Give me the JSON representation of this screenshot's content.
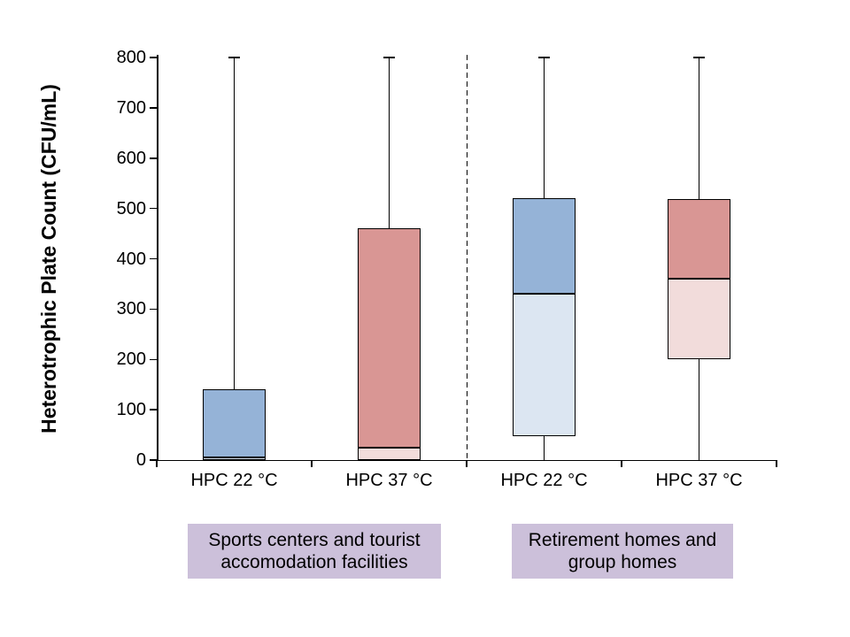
{
  "colors": {
    "box_blue": "#95B3D7",
    "box_blue_light": "#DCE6F2",
    "box_red": "#D99694",
    "box_red_light": "#F2DCDB",
    "group_label_bg": "#CCC0DA",
    "axis": "#000000"
  },
  "chart_data": {
    "type": "box",
    "title": "",
    "ylabel": "Heterotrophic Plate Count (CFU/mL)",
    "xlabel": "",
    "ylim": [
      0,
      800
    ],
    "yticks": [
      0,
      100,
      200,
      300,
      400,
      500,
      600,
      700,
      800
    ],
    "grid": false,
    "legend": "none",
    "separator_note": "dashed vertical line between the two facility groups",
    "group_labels": [
      {
        "line1": "Sports centers and tourist",
        "line2": "accomodation facilities"
      },
      {
        "line1": "Retirement homes and",
        "line2": "group homes"
      }
    ],
    "boxes": [
      {
        "label": "HPC 22 °C",
        "group": "Sports centers and tourist accomodation facilities",
        "min": 0,
        "q1": 0,
        "median": 5,
        "q3": 140,
        "max": 800,
        "color_upper": "#95B3D7",
        "color_lower": "#DCE6F2"
      },
      {
        "label": "HPC 37 °C",
        "group": "Sports centers and tourist accomodation facilities",
        "min": 0,
        "q1": 0,
        "median": 25,
        "q3": 460,
        "max": 800,
        "color_upper": "#D99694",
        "color_lower": "#F2DCDB"
      },
      {
        "label": "HPC 22 °C",
        "group": "Retirement homes and group homes",
        "min": 0,
        "q1": 47,
        "median": 330,
        "q3": 520,
        "max": 800,
        "color_upper": "#95B3D7",
        "color_lower": "#DCE6F2"
      },
      {
        "label": "HPC 37 °C",
        "group": "Retirement homes and group homes",
        "min": 0,
        "q1": 200,
        "median": 360,
        "q3": 518,
        "max": 800,
        "color_upper": "#D99694",
        "color_lower": "#F2DCDB"
      }
    ]
  }
}
